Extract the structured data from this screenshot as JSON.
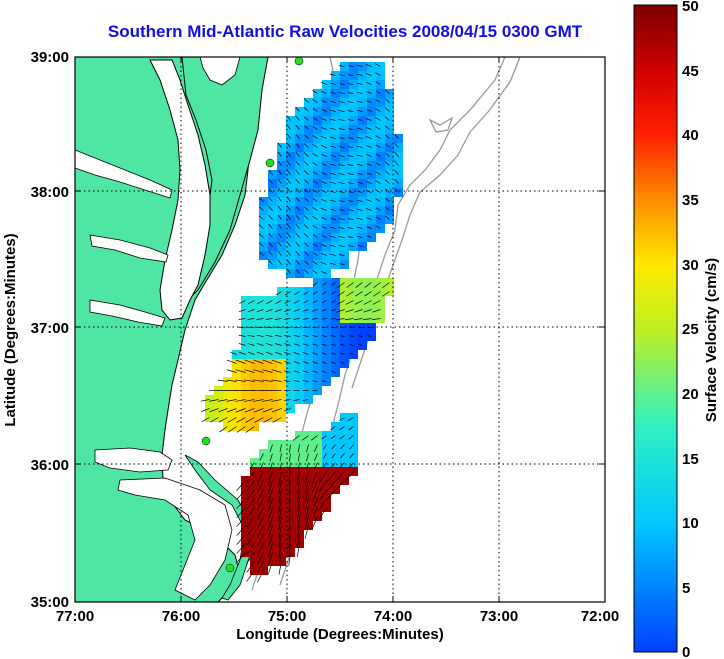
{
  "map": {
    "title": "Southern Mid-Atlantic Raw Velocities 2008/04/15 0300 GMT",
    "xlabel": "Longitude (Degrees:Minutes)",
    "ylabel": "Latitude (Degrees:Minutes)",
    "x_ticks": [
      "77:00",
      "76:00",
      "75:00",
      "74:00",
      "73:00",
      "72:00"
    ],
    "y_ticks": [
      "39:00",
      "38:00",
      "37:00",
      "36:00",
      "35:00"
    ],
    "colors": {
      "land": "#4fe6a4",
      "ocean": "#ffffff",
      "bathymetry": "#9a9a9a",
      "coastline": "#000000",
      "grid": "#000000",
      "station": "#22dd22",
      "title": "#1010e6"
    }
  },
  "colorbar": {
    "label": "Surface Velocity (cm/s)",
    "ticks": [
      "0",
      "5",
      "10",
      "15",
      "20",
      "25",
      "30",
      "35",
      "40",
      "45",
      "50"
    ],
    "range": [
      0,
      50
    ],
    "colormap": "jet"
  }
}
